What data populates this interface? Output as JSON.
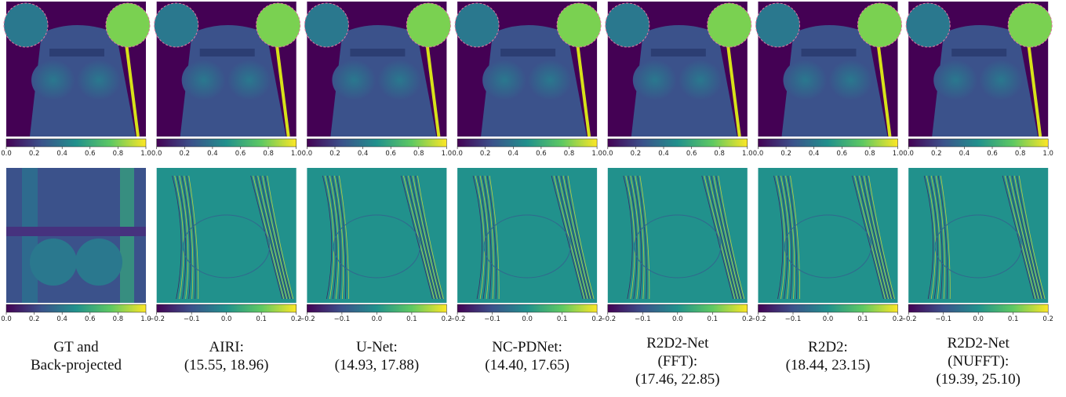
{
  "columns": [
    {
      "caption": [
        "GT and",
        "Back-projected"
      ]
    },
    {
      "caption": [
        "AIRI:",
        "(15.55, 18.96)"
      ]
    },
    {
      "caption": [
        "U-Net:",
        "(14.93, 17.88)"
      ]
    },
    {
      "caption": [
        "NC-PDNet:",
        "(14.40, 17.65)"
      ]
    },
    {
      "caption": [
        "R2D2-Net",
        "(FFT):",
        "(17.46, 22.85)"
      ]
    },
    {
      "caption": [
        "R2D2:",
        "(18.44, 23.15)"
      ]
    },
    {
      "caption": [
        "R2D2-Net",
        "(NUFFT):",
        "(19.39, 25.10)"
      ]
    }
  ],
  "top_colorbar_ticks": [
    "0.0",
    "0.2",
    "0.4",
    "0.6",
    "0.8",
    "1.0"
  ],
  "error_colorbar_ticks": [
    "−0.2",
    "−0.1",
    "0.0",
    "0.1",
    "0.2"
  ]
}
